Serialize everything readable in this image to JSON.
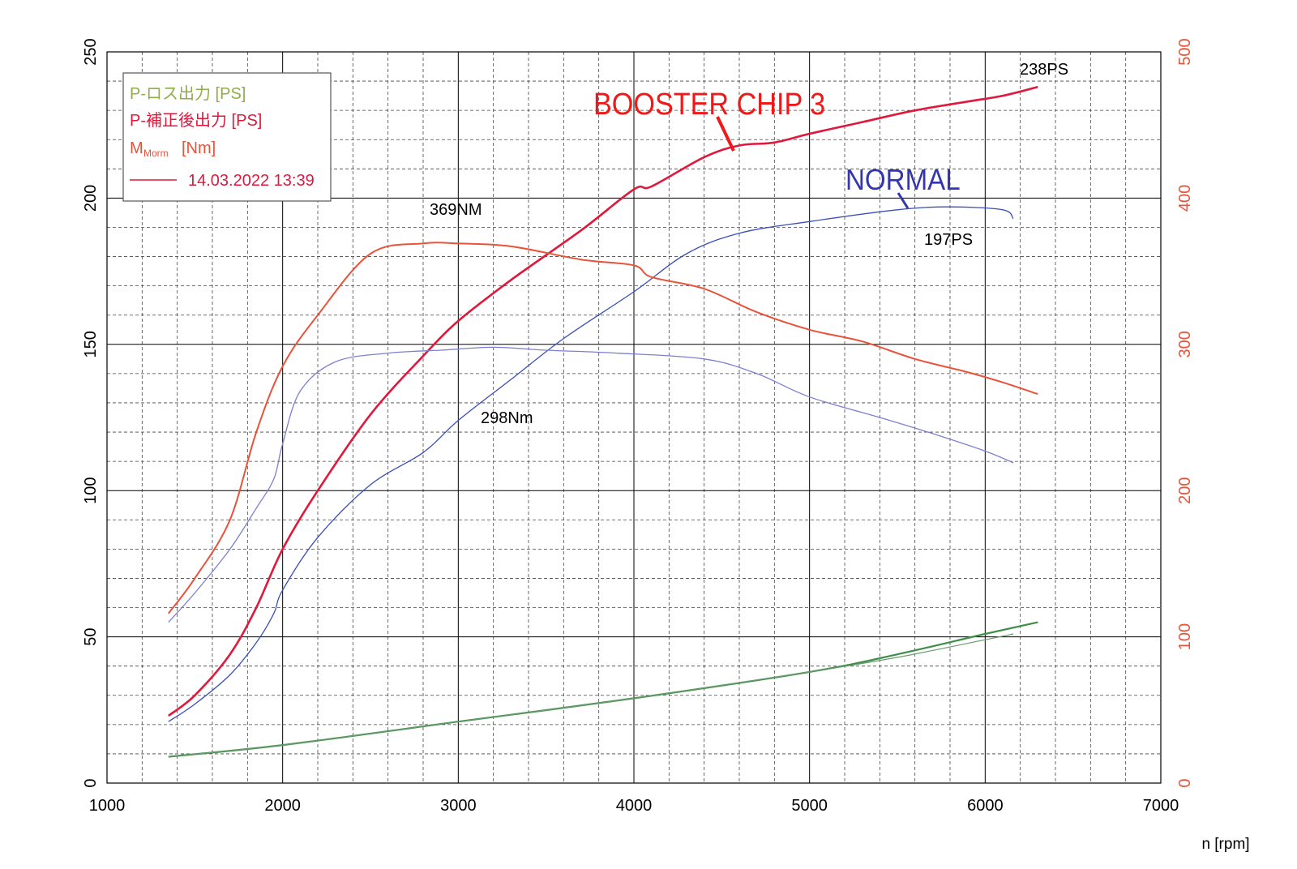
{
  "chart_data": {
    "type": "line",
    "xlabel": "n [rpm]",
    "x_range": [
      1000,
      7000
    ],
    "x_ticks": [
      "1000",
      "2000",
      "3000",
      "4000",
      "5000",
      "6000",
      "7000"
    ],
    "y_left_range": [
      0,
      250
    ],
    "y_left_ticks": [
      "0",
      "50",
      "100",
      "150",
      "200",
      "250"
    ],
    "y_right_range": [
      0,
      500
    ],
    "y_right_ticks": [
      "0",
      "100",
      "200",
      "300",
      "400",
      "500"
    ],
    "grid": true,
    "legend": {
      "placement": "top-left",
      "entries": [
        "P-ロス出力 [PS]",
        "P-補正後出力 [PS]",
        "M",
        "Morm",
        "[Nm]"
      ],
      "record": "14.03.2022 13:39"
    },
    "annotations": {
      "booster": "BOOSTER CHIP 3",
      "normal": "NORMAL",
      "booster_power": "238PS",
      "normal_power": "197PS",
      "booster_torque": "369NM",
      "normal_torque": "298Nm"
    },
    "colors": {
      "booster_power": "#e0193c",
      "booster_torque": "#e8533a",
      "normal": "#3a4fb8",
      "normal_torque": "#7c80d0",
      "loss": "#3f8f4a",
      "loss_label": "#8fae4a",
      "axis_right": "#e8533a",
      "booster_text": "#f01818",
      "normal_text": "#3336b0"
    },
    "series": [
      {
        "name": "BOOSTER CHIP 3 power",
        "axis": "left",
        "points": [
          [
            1350,
            23
          ],
          [
            1500,
            30
          ],
          [
            1700,
            44
          ],
          [
            1850,
            60
          ],
          [
            2000,
            80
          ],
          [
            2200,
            100
          ],
          [
            2500,
            126
          ],
          [
            2800,
            146
          ],
          [
            3000,
            158
          ],
          [
            3300,
            172
          ],
          [
            3700,
            189
          ],
          [
            4000,
            203
          ],
          [
            4100,
            204
          ],
          [
            4400,
            214
          ],
          [
            4600,
            218
          ],
          [
            4800,
            219
          ],
          [
            5000,
            222
          ],
          [
            5300,
            226
          ],
          [
            5600,
            230
          ],
          [
            5900,
            233
          ],
          [
            6100,
            235
          ],
          [
            6300,
            238
          ]
        ]
      },
      {
        "name": "NORMAL power",
        "axis": "left",
        "points": [
          [
            1350,
            21
          ],
          [
            1500,
            27
          ],
          [
            1700,
            37
          ],
          [
            1850,
            48
          ],
          [
            1950,
            58
          ],
          [
            2000,
            66
          ],
          [
            2200,
            84
          ],
          [
            2500,
            102
          ],
          [
            2800,
            113
          ],
          [
            3000,
            124
          ],
          [
            3300,
            138
          ],
          [
            3600,
            152
          ],
          [
            4000,
            168
          ],
          [
            4300,
            181
          ],
          [
            4600,
            188
          ],
          [
            5000,
            192
          ],
          [
            5500,
            196
          ],
          [
            5800,
            197
          ],
          [
            6100,
            196
          ],
          [
            6160,
            193
          ]
        ]
      },
      {
        "name": "BOOSTER CHIP 3 torque",
        "axis": "right",
        "points": [
          [
            1350,
            116
          ],
          [
            1500,
            140
          ],
          [
            1700,
            180
          ],
          [
            1850,
            240
          ],
          [
            2000,
            285
          ],
          [
            2200,
            320
          ],
          [
            2500,
            362
          ],
          [
            2800,
            369
          ],
          [
            3000,
            369
          ],
          [
            3300,
            367
          ],
          [
            3700,
            358
          ],
          [
            4000,
            354
          ],
          [
            4100,
            346
          ],
          [
            4400,
            338
          ],
          [
            4700,
            322
          ],
          [
            5000,
            310
          ],
          [
            5300,
            302
          ],
          [
            5600,
            290
          ],
          [
            5900,
            281
          ],
          [
            6100,
            274
          ],
          [
            6300,
            266
          ]
        ]
      },
      {
        "name": "NORMAL torque",
        "axis": "right",
        "points": [
          [
            1350,
            110
          ],
          [
            1500,
            130
          ],
          [
            1700,
            160
          ],
          [
            1850,
            188
          ],
          [
            1950,
            208
          ],
          [
            2000,
            232
          ],
          [
            2100,
            268
          ],
          [
            2300,
            288
          ],
          [
            2600,
            294
          ],
          [
            2900,
            296
          ],
          [
            3200,
            298
          ],
          [
            3500,
            296
          ],
          [
            3900,
            294
          ],
          [
            4400,
            290
          ],
          [
            4700,
            280
          ],
          [
            5000,
            264
          ],
          [
            5400,
            250
          ],
          [
            5700,
            239
          ],
          [
            6000,
            227
          ],
          [
            6160,
            219
          ]
        ]
      },
      {
        "name": "Loss power BOOSTER",
        "axis": "left",
        "points": [
          [
            1350,
            9
          ],
          [
            2000,
            13
          ],
          [
            3000,
            21
          ],
          [
            4000,
            29
          ],
          [
            5000,
            38
          ],
          [
            5500,
            44
          ],
          [
            6000,
            51
          ],
          [
            6300,
            55
          ]
        ]
      },
      {
        "name": "Loss power NORMAL",
        "axis": "left",
        "points": [
          [
            1350,
            9
          ],
          [
            2000,
            13
          ],
          [
            3000,
            21
          ],
          [
            4000,
            29
          ],
          [
            5000,
            38
          ],
          [
            5500,
            43
          ],
          [
            6000,
            49
          ],
          [
            6160,
            51
          ]
        ]
      }
    ]
  }
}
